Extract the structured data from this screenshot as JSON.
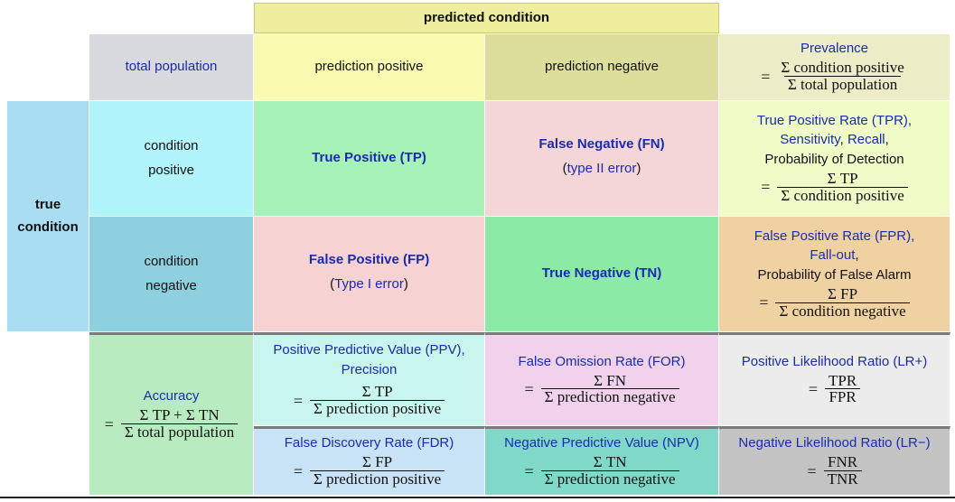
{
  "header": {
    "predicted_condition": "predicted condition",
    "true_condition_line1": "true",
    "true_condition_line2": "condition"
  },
  "cols": {
    "total_population": "total population",
    "prediction_positive": "prediction positive",
    "prediction_negative": "prediction negative"
  },
  "prevalence": {
    "label": "Prevalence",
    "num": "Σ condition positive",
    "den": "Σ total population"
  },
  "rows": {
    "condition_positive_1": "condition",
    "condition_positive_2": "positive",
    "condition_negative_1": "condition",
    "condition_negative_2": "negative"
  },
  "tp": {
    "label": "True Positive (TP)"
  },
  "fn": {
    "label": "False Negative (FN)",
    "sub_open": "(",
    "sub_link": "type II error",
    "sub_close": ")"
  },
  "fp": {
    "label": "False Positive (FP)",
    "sub_open": "(",
    "sub_link": "Type I error",
    "sub_close": ")"
  },
  "tn": {
    "label": "True Negative (TN)"
  },
  "tpr": {
    "line1": "True Positive Rate (TPR),",
    "sensitivity": "Sensitivity",
    "comma1": ",",
    "recall": "Recall",
    "comma2": ",",
    "line3": "Probability of Detection",
    "num": "Σ TP",
    "den": "Σ condition positive"
  },
  "fpr": {
    "line1": "False Positive Rate (FPR),",
    "fallout": "Fall-out",
    "comma": ",",
    "line3": "Probability of False Alarm",
    "num": "Σ FP",
    "den": "Σ condition negative"
  },
  "accuracy": {
    "label": "Accuracy",
    "num": "Σ TP + Σ TN",
    "den": "Σ total population"
  },
  "ppv": {
    "line1": "Positive Predictive Value (PPV),",
    "line2": "Precision",
    "num": "Σ TP",
    "den": "Σ prediction positive"
  },
  "for": {
    "label": "False Omission Rate (FOR)",
    "num": "Σ FN",
    "den": "Σ prediction negative"
  },
  "lrp": {
    "label": "Positive Likelihood Ratio (LR+)",
    "num": "TPR",
    "den": "FPR"
  },
  "fdr": {
    "label": "False Discovery Rate (FDR)",
    "num": "Σ FP",
    "den": "Σ prediction positive"
  },
  "npv": {
    "label": "Negative Predictive Value (NPV)",
    "num": "Σ TN",
    "den": "Σ prediction negative"
  },
  "lrn": {
    "label": "Negative Likelihood Ratio (LR−)",
    "num": "FNR",
    "den": "TNR"
  },
  "equals": "=",
  "colors": {
    "predicted_header": "#eeee9e",
    "total_population": "#d9d9e0",
    "prediction_positive": "#fafab0",
    "prediction_negative": "#dede9c",
    "prevalence": "#ececc6",
    "true_condition": "#a9ddf2",
    "condition_positive": "#b2f4fc",
    "condition_negative": "#8ed0e0",
    "tp": "#a6f2b8",
    "fn": "#f4d6d6",
    "fp": "#f6d2d2",
    "tn": "#8aeaa6",
    "tpr": "#f0fcc8",
    "fpr": "#f0d2a2",
    "accuracy": "#b8ecc0",
    "ppv": "#c8f6ee",
    "for": "#f0d2ec",
    "lrp": "#ececec",
    "fdr": "#c8e2f6",
    "npv": "#80d8c8",
    "lrn": "#c4c4c4",
    "link": "#1a2bb0"
  }
}
